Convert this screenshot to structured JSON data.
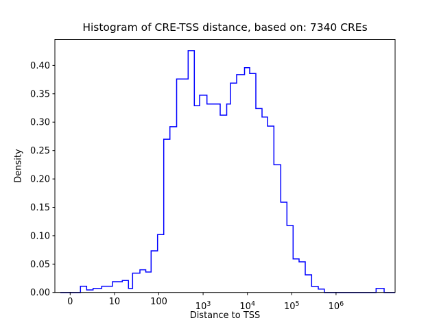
{
  "figure": {
    "title": "Histogram of CRE-TSS distance, based on: 7340 CREs",
    "xlabel": "Distance to TSS",
    "ylabel": "Density",
    "background": "#ffffff"
  },
  "chart_data": {
    "type": "bar",
    "subtype": "step-histogram",
    "title": "Histogram of CRE-TSS distance, based on: 7340 CREs",
    "xlabel": "Distance to TSS",
    "ylabel": "Density",
    "n_cres": "7340",
    "line_color": "#0000ff",
    "axis_color": "#000000",
    "grid": "off",
    "legend": "none",
    "x_axis": {
      "scale": "log-like (0 then powers of 10)",
      "min": -0.345,
      "max": 7.332,
      "ticks": [
        {
          "d": 0,
          "label": "0"
        },
        {
          "d": 1,
          "label": "10"
        },
        {
          "d": 2,
          "label": "100"
        },
        {
          "d": 3,
          "base": "10",
          "exp": "3"
        },
        {
          "d": 4,
          "base": "10",
          "exp": "4"
        },
        {
          "d": 5,
          "base": "10",
          "exp": "5"
        },
        {
          "d": 6,
          "base": "10",
          "exp": "6"
        }
      ]
    },
    "y_axis": {
      "min": 0,
      "max": 0.4458,
      "ticks": [
        {
          "v": 0.0,
          "label": "0.00"
        },
        {
          "v": 0.05,
          "label": "0.05"
        },
        {
          "v": 0.1,
          "label": "0.10"
        },
        {
          "v": 0.15,
          "label": "0.15"
        },
        {
          "v": 0.2,
          "label": "0.20"
        },
        {
          "v": 0.25,
          "label": "0.25"
        },
        {
          "v": 0.3,
          "label": "0.30"
        },
        {
          "v": 0.35,
          "label": "0.35"
        },
        {
          "v": 0.4,
          "label": "0.40"
        }
      ]
    },
    "bin_edges_log10": [
      -0.221,
      0.232,
      0.372,
      0.517,
      0.712,
      0.955,
      1.176,
      1.316,
      1.409,
      1.574,
      1.706,
      1.827,
      1.972,
      2.112,
      2.251,
      2.403,
      2.663,
      2.802,
      2.921,
      3.087,
      3.385,
      3.532,
      3.617,
      3.757,
      3.935,
      4.051,
      4.19,
      4.329,
      4.453,
      4.597,
      4.752,
      4.891,
      5.031,
      5.165,
      5.305,
      5.449,
      5.599,
      5.734,
      6.904,
      7.085,
      7.332
    ],
    "densities": [
      0,
      0.011,
      0.0045,
      0.007,
      0.011,
      0.019,
      0.021,
      0.007,
      0.034,
      0.04,
      0.036,
      0.0733,
      0.102,
      0.27,
      0.292,
      0.376,
      0.426,
      0.329,
      0.3475,
      0.332,
      0.3124,
      0.332,
      0.3688,
      0.3837,
      0.396,
      0.3857,
      0.324,
      0.309,
      0.293,
      0.225,
      0.159,
      0.118,
      0.059,
      0.054,
      0.031,
      0.0105,
      0.006,
      0.0,
      0.007,
      0.0
    ]
  }
}
